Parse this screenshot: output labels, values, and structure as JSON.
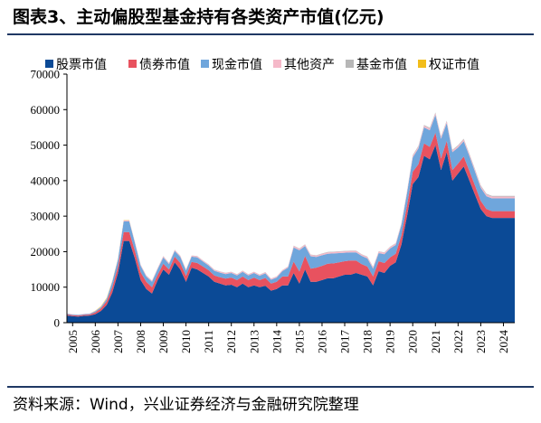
{
  "title": "图表3、主动偏股型基金持有各类资产市值(亿元)",
  "source": "资料来源：Wind，兴业证券经济与金融研究院整理",
  "colors": {
    "stocks": "#0b4a96",
    "bonds": "#e8525f",
    "cash": "#6fa6dc",
    "other": "#f5b9c9",
    "fund": "#b7b7b7",
    "warrant": "#f2bd1a",
    "rule": "#1f3864"
  },
  "chart_data": {
    "type": "area",
    "stacked": true,
    "title": "",
    "xlabel": "",
    "ylabel": "",
    "ylim": [
      0,
      70000
    ],
    "yticks": [
      0,
      10000,
      20000,
      30000,
      40000,
      50000,
      60000,
      70000
    ],
    "xtick_labels": [
      "2005",
      "2006",
      "2007",
      "2008",
      "2009",
      "2010",
      "2011",
      "2012",
      "2013",
      "2014",
      "2015",
      "2016",
      "2017",
      "2018",
      "2019",
      "2020",
      "2021",
      "2022",
      "2023",
      "2024"
    ],
    "legend_position": "top",
    "grid": false,
    "x": [
      2004.75,
      2005.0,
      2005.25,
      2005.5,
      2005.75,
      2006.0,
      2006.25,
      2006.5,
      2006.75,
      2007.0,
      2007.25,
      2007.5,
      2007.75,
      2008.0,
      2008.25,
      2008.5,
      2008.75,
      2009.0,
      2009.25,
      2009.5,
      2009.75,
      2010.0,
      2010.25,
      2010.5,
      2010.75,
      2011.0,
      2011.25,
      2011.5,
      2011.75,
      2012.0,
      2012.25,
      2012.5,
      2012.75,
      2013.0,
      2013.25,
      2013.5,
      2013.75,
      2014.0,
      2014.25,
      2014.5,
      2014.75,
      2015.0,
      2015.25,
      2015.5,
      2015.75,
      2016.0,
      2016.25,
      2016.5,
      2016.75,
      2017.0,
      2017.25,
      2017.5,
      2017.75,
      2018.0,
      2018.25,
      2018.5,
      2018.75,
      2019.0,
      2019.25,
      2019.5,
      2019.75,
      2020.0,
      2020.25,
      2020.5,
      2020.75,
      2021.0,
      2021.25,
      2021.5,
      2021.75,
      2022.0,
      2022.25,
      2022.5,
      2022.75,
      2023.0,
      2023.25,
      2023.5,
      2023.75,
      2024.0,
      2024.25,
      2024.5
    ],
    "series": [
      {
        "name": "股票市值",
        "key": "stocks",
        "values": [
          2000,
          1800,
          1700,
          1900,
          2000,
          2400,
          3300,
          5000,
          8500,
          14000,
          23000,
          23000,
          18000,
          12000,
          9500,
          8200,
          12000,
          15000,
          13500,
          17000,
          15000,
          11500,
          15500,
          15000,
          14000,
          13000,
          11500,
          11000,
          10500,
          10700,
          10000,
          11000,
          10000,
          10500,
          10000,
          10400,
          9000,
          9500,
          10500,
          10500,
          14000,
          11000,
          15000,
          11500,
          11500,
          12000,
          12500,
          12500,
          13000,
          13500,
          13500,
          14000,
          13500,
          13000,
          10500,
          14500,
          14000,
          16000,
          17000,
          22000,
          30000,
          39000,
          41000,
          47000,
          46000,
          50000,
          43000,
          48000,
          40000,
          42000,
          44000,
          40000,
          36000,
          32000,
          30000,
          29500,
          29500,
          29500,
          29500,
          29500
        ]
      },
      {
        "name": "债券市值",
        "key": "bonds",
        "values": [
          300,
          300,
          300,
          300,
          300,
          500,
          700,
          1000,
          1500,
          1800,
          2500,
          2500,
          2200,
          2200,
          2000,
          1800,
          1500,
          1600,
          1500,
          1600,
          1800,
          1700,
          1600,
          1800,
          1800,
          1800,
          1800,
          1800,
          1900,
          2000,
          2000,
          2000,
          2000,
          2200,
          2000,
          2200,
          2000,
          2000,
          2500,
          2500,
          3200,
          3400,
          3800,
          3700,
          4000,
          4000,
          4100,
          4200,
          4000,
          3800,
          4000,
          3500,
          3000,
          2800,
          2500,
          2800,
          2800,
          2400,
          2400,
          2600,
          3000,
          3500,
          3600,
          3500,
          3500,
          3500,
          3300,
          3200,
          3000,
          2800,
          2800,
          2700,
          2600,
          2300,
          2000,
          1900,
          1900,
          1900,
          1900,
          1900
        ]
      },
      {
        "name": "现金市值",
        "key": "cash",
        "values": [
          200,
          200,
          200,
          200,
          200,
          300,
          400,
          700,
          1500,
          2000,
          3000,
          3000,
          2200,
          1800,
          1500,
          1500,
          1600,
          1800,
          1500,
          1600,
          1700,
          1500,
          1500,
          1600,
          1400,
          1300,
          1300,
          1300,
          1300,
          1300,
          1300,
          1300,
          1300,
          1300,
          1200,
          1300,
          1100,
          1200,
          1500,
          2500,
          4000,
          6000,
          2800,
          3500,
          3000,
          3000,
          2800,
          2800,
          2600,
          2400,
          2300,
          2300,
          2300,
          2300,
          2200,
          2300,
          2500,
          2500,
          2500,
          2900,
          3500,
          4000,
          4500,
          4500,
          4700,
          5000,
          5500,
          5000,
          5000,
          4500,
          4300,
          4200,
          3900,
          3700,
          3600,
          3600,
          3600,
          3600,
          3600,
          3600
        ]
      },
      {
        "name": "其他资产",
        "key": "other",
        "values": [
          100,
          100,
          100,
          100,
          100,
          100,
          100,
          150,
          200,
          200,
          300,
          300,
          300,
          300,
          300,
          300,
          300,
          300,
          300,
          300,
          300,
          300,
          300,
          300,
          300,
          300,
          300,
          300,
          300,
          300,
          300,
          300,
          300,
          300,
          300,
          300,
          300,
          300,
          300,
          300,
          400,
          400,
          400,
          400,
          400,
          400,
          400,
          400,
          400,
          400,
          400,
          400,
          400,
          400,
          400,
          400,
          400,
          400,
          400,
          400,
          500,
          500,
          500,
          500,
          500,
          500,
          500,
          500,
          500,
          500,
          500,
          500,
          500,
          500,
          500,
          500,
          500,
          500,
          500,
          500
        ]
      },
      {
        "name": "基金市值",
        "key": "fund",
        "values": [
          0,
          0,
          0,
          0,
          0,
          0,
          0,
          0,
          0,
          50,
          50,
          50,
          50,
          50,
          50,
          50,
          50,
          50,
          50,
          50,
          50,
          50,
          50,
          50,
          50,
          50,
          50,
          50,
          50,
          50,
          50,
          50,
          50,
          50,
          50,
          50,
          50,
          50,
          50,
          50,
          100,
          100,
          100,
          100,
          100,
          100,
          100,
          100,
          100,
          100,
          100,
          100,
          100,
          100,
          100,
          100,
          100,
          100,
          100,
          150,
          150,
          200,
          200,
          200,
          200,
          200,
          200,
          200,
          200,
          200,
          200,
          200,
          200,
          200,
          200,
          200,
          200,
          200,
          200,
          200
        ]
      },
      {
        "name": "权证市值",
        "key": "warrant",
        "values": [
          0,
          0,
          0,
          0,
          0,
          50,
          150,
          150,
          100,
          50,
          50,
          50,
          0,
          0,
          0,
          0,
          0,
          0,
          0,
          0,
          0,
          0,
          0,
          0,
          0,
          0,
          0,
          0,
          0,
          0,
          0,
          0,
          0,
          0,
          0,
          0,
          0,
          0,
          0,
          0,
          0,
          0,
          0,
          0,
          0,
          0,
          0,
          0,
          0,
          0,
          0,
          0,
          0,
          0,
          0,
          0,
          0,
          0,
          0,
          0,
          0,
          0,
          0,
          0,
          0,
          0,
          0,
          0,
          0,
          0,
          0,
          0,
          0,
          0,
          0,
          0,
          0,
          0,
          0,
          0
        ]
      }
    ]
  }
}
